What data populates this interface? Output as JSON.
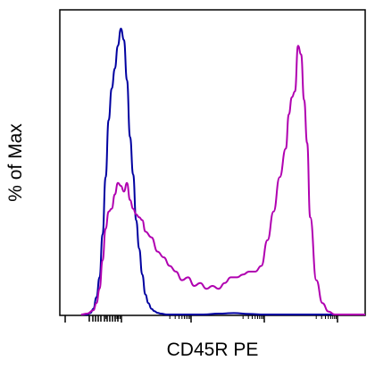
{
  "chart_data": {
    "type": "line",
    "title": "",
    "xlabel": "CD45R PE",
    "ylabel": "% of Max",
    "x_scale": "log (flow cytometry biexponential display, no printed tick labels)",
    "xlim": [
      0,
      100
    ],
    "ylim": [
      0,
      100
    ],
    "grid": false,
    "legend": "none",
    "x_tick_labels": [],
    "y_tick_labels": [],
    "series": [
      {
        "color": "#0000a0",
        "x": [
          7,
          9,
          10,
          11,
          12,
          13,
          14,
          15,
          16,
          17,
          18,
          19,
          20,
          21,
          22,
          23,
          24,
          25,
          26,
          27,
          28,
          29,
          30,
          31,
          32,
          33,
          35,
          38,
          42,
          47,
          52,
          57,
          62,
          67,
          75,
          85,
          95,
          100
        ],
        "y": [
          0,
          0,
          0.5,
          2,
          6,
          13,
          28,
          48,
          68,
          79,
          86,
          94,
          100,
          96,
          82,
          62,
          49,
          33,
          23,
          14,
          7,
          4,
          2,
          1.2,
          0.6,
          0.3,
          0,
          0,
          0,
          0,
          0.3,
          0.5,
          0.2,
          0,
          0,
          0,
          0,
          0
        ]
      },
      {
        "color": "#b000b0",
        "x": [
          7,
          9,
          11,
          12,
          13,
          14,
          15,
          16,
          17,
          18,
          19,
          20,
          21,
          22,
          23,
          24,
          25,
          26,
          27,
          28,
          30,
          32,
          34,
          36,
          38,
          40,
          42,
          44,
          46,
          48,
          50,
          52,
          54,
          56,
          58,
          60,
          62,
          64,
          66,
          68,
          70,
          72,
          74,
          75,
          76,
          77,
          78,
          79,
          80,
          81,
          82,
          84,
          86,
          88,
          90,
          95,
          100
        ],
        "y": [
          0,
          0.3,
          1.5,
          4,
          9,
          19,
          30,
          36,
          37,
          42,
          46,
          45,
          43,
          46,
          40,
          37,
          35,
          34,
          33,
          29,
          27,
          22,
          20,
          17,
          15,
          12,
          13,
          10,
          11,
          9,
          10,
          9,
          11,
          13,
          13,
          14,
          15,
          15,
          17,
          26,
          36,
          48,
          58,
          70,
          76,
          78,
          94,
          91,
          75,
          60,
          34,
          12,
          4,
          1,
          0,
          0,
          0
        ]
      }
    ]
  }
}
